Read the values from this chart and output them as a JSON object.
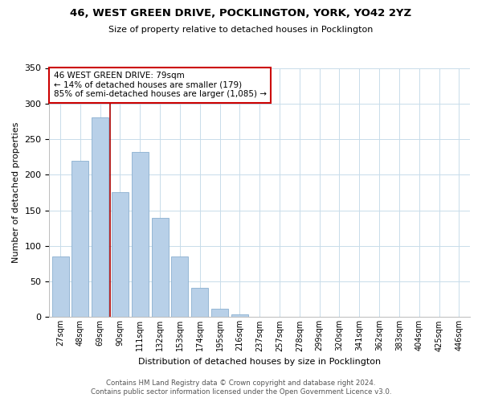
{
  "title": "46, WEST GREEN DRIVE, POCKLINGTON, YORK, YO42 2YZ",
  "subtitle": "Size of property relative to detached houses in Pocklington",
  "xlabel": "Distribution of detached houses by size in Pocklington",
  "ylabel": "Number of detached properties",
  "bar_labels": [
    "27sqm",
    "48sqm",
    "69sqm",
    "90sqm",
    "111sqm",
    "132sqm",
    "153sqm",
    "174sqm",
    "195sqm",
    "216sqm",
    "237sqm",
    "257sqm",
    "278sqm",
    "299sqm",
    "320sqm",
    "341sqm",
    "362sqm",
    "383sqm",
    "404sqm",
    "425sqm",
    "446sqm"
  ],
  "bar_heights": [
    85,
    219,
    281,
    176,
    232,
    139,
    85,
    41,
    12,
    4,
    0,
    1,
    0,
    0,
    0,
    0,
    0,
    0,
    0,
    0,
    1
  ],
  "bar_color": "#b8d0e8",
  "bar_edge_color": "#8ab0d0",
  "marker_line_color": "#aa0000",
  "ylim": [
    0,
    350
  ],
  "yticks": [
    0,
    50,
    100,
    150,
    200,
    250,
    300,
    350
  ],
  "annotation_text": "46 WEST GREEN DRIVE: 79sqm\n← 14% of detached houses are smaller (179)\n85% of semi-detached houses are larger (1,085) →",
  "annotation_box_color": "#ffffff",
  "annotation_box_edge_color": "#cc0000",
  "footer_line1": "Contains HM Land Registry data © Crown copyright and database right 2024.",
  "footer_line2": "Contains public sector information licensed under the Open Government Licence v3.0.",
  "background_color": "#ffffff",
  "grid_color": "#c8dcea"
}
